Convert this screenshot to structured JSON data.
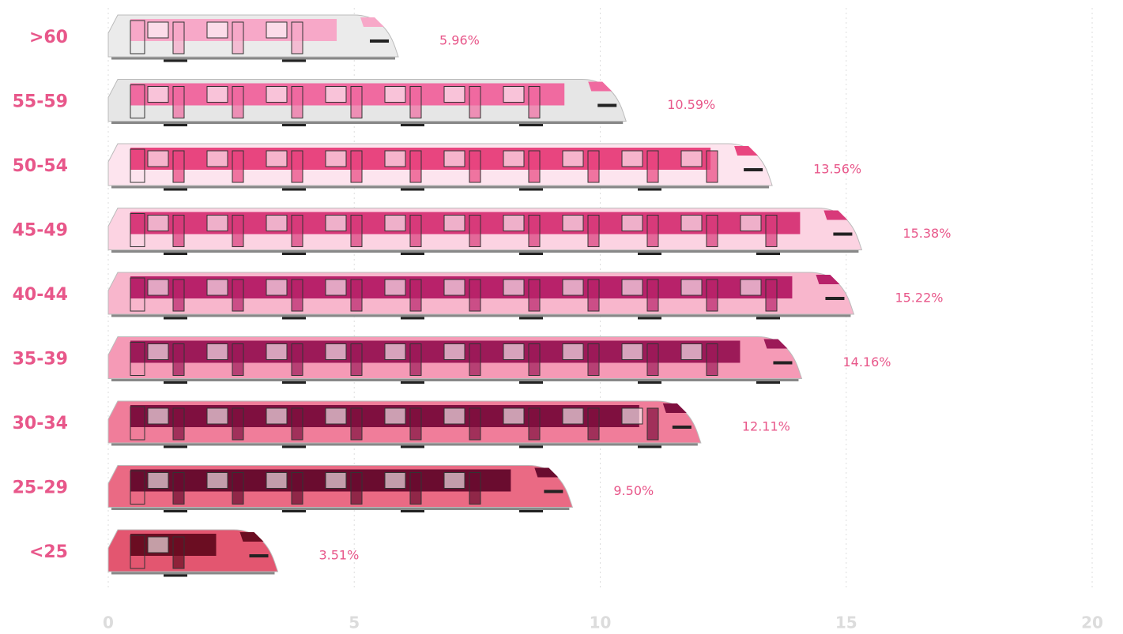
{
  "chart_data": {
    "type": "pictorial-bar",
    "categories": [
      ">60",
      "55-59",
      "50-54",
      "45-49",
      "40-44",
      "35-39",
      "30-34",
      "25-29",
      "<25"
    ],
    "values": [
      5.96,
      10.59,
      13.56,
      15.38,
      15.22,
      14.16,
      12.11,
      9.5,
      3.51
    ],
    "value_labels": [
      "5.96%",
      "10.59%",
      "13.56%",
      "15.38%",
      "15.22%",
      "14.16%",
      "12.11%",
      "9.50%",
      "3.51%"
    ],
    "colors": [
      "#f7a8c8",
      "#f06aa0",
      "#e8457f",
      "#d83a7a",
      "#b8226a",
      "#9c1a58",
      "#7f0f3f",
      "#6a0c2f",
      "#6b0d22"
    ],
    "body_colors": [
      "#ebebeb",
      "#e6e6e6",
      "#fde4ee",
      "#fcd3e2",
      "#f8b6cc",
      "#f59ab6",
      "#f07d9a",
      "#ea6a84",
      "#e35670"
    ],
    "xlim": [
      0,
      20
    ],
    "xticks": [
      0,
      5,
      10,
      15,
      20
    ],
    "grid": true
  }
}
